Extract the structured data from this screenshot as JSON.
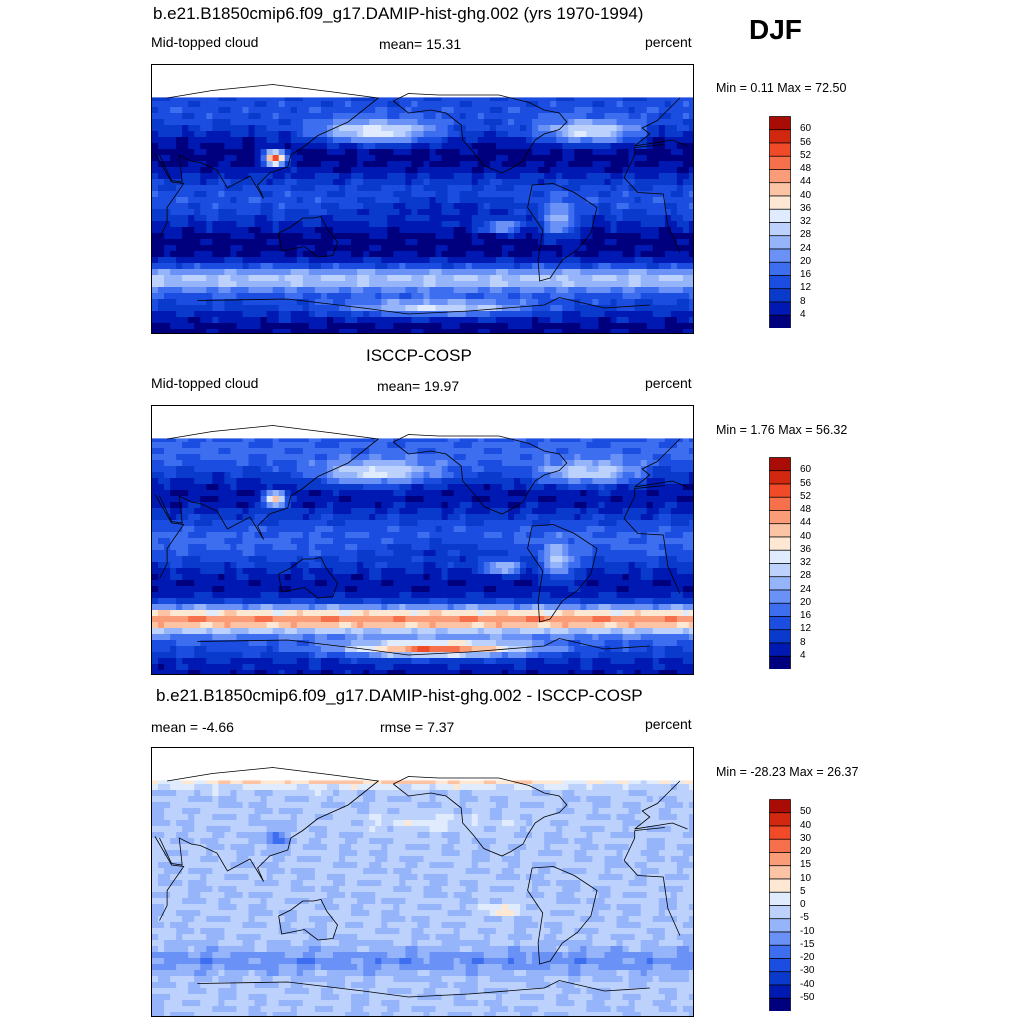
{
  "season": "DJF",
  "panels": [
    {
      "title": "b.e21.B1850cmip6.f09_g17.DAMIP-hist-ghg.002 (yrs 1970-1994)",
      "left_label": "Mid-topped cloud",
      "center_label": "mean=  15.31",
      "units": "percent",
      "minmax": "Min =   0.11 Max =  72.50",
      "scale": "abs",
      "climate": {
        "mean": 15.31,
        "min": 0.11,
        "max": 72.5,
        "southern_ocean_band": 28,
        "storm_track": 40,
        "hotspot": 64
      }
    },
    {
      "title": "ISCCP-COSP",
      "left_label": "Mid-topped cloud",
      "center_label": "mean=  19.97",
      "units": "percent",
      "minmax": "Min =   1.76 Max =  56.32",
      "scale": "abs",
      "climate": {
        "mean": 19.97,
        "min": 1.76,
        "max": 56.32,
        "southern_ocean_band": 44,
        "storm_track": 36,
        "hotspot": 50
      }
    },
    {
      "title": "b.e21.B1850cmip6.f09_g17.DAMIP-hist-ghg.002 - ISCCP-COSP",
      "left_label": "mean =  -4.66",
      "center_label": "rmse =   7.37",
      "units": "percent",
      "minmax": "Min = -28.23 Max =  26.37",
      "scale": "diff",
      "climate": {
        "mean": -4.66,
        "rmse": 7.37,
        "min": -28.23,
        "max": 26.37
      }
    }
  ],
  "chart_data": [
    {
      "type": "heatmap",
      "title": "b.e21.B1850cmip6.f09_g17.DAMIP-hist-ghg.002 (yrs 1970-1994)",
      "variable": "Mid-topped cloud",
      "units": "percent",
      "mean": 15.31,
      "min": 0.11,
      "max": 72.5,
      "colorbar_levels": [
        4,
        8,
        12,
        16,
        20,
        24,
        28,
        32,
        36,
        40,
        44,
        48,
        52,
        56,
        60
      ]
    },
    {
      "type": "heatmap",
      "title": "ISCCP-COSP",
      "variable": "Mid-topped cloud",
      "units": "percent",
      "mean": 19.97,
      "min": 1.76,
      "max": 56.32,
      "colorbar_levels": [
        4,
        8,
        12,
        16,
        20,
        24,
        28,
        32,
        36,
        40,
        44,
        48,
        52,
        56,
        60
      ]
    },
    {
      "type": "heatmap",
      "title": "b.e21.B1850cmip6.f09_g17.DAMIP-hist-ghg.002 - ISCCP-COSP",
      "units": "percent",
      "mean": -4.66,
      "rmse": 7.37,
      "min": -28.23,
      "max": 26.37,
      "colorbar_levels": [
        -50,
        -40,
        -30,
        -20,
        -15,
        -10,
        -5,
        0,
        5,
        10,
        15,
        20,
        30,
        40,
        50
      ]
    }
  ],
  "colors": {
    "abs_palette": [
      "#00007f",
      "#0019b2",
      "#0a3acc",
      "#1a4de0",
      "#3e6ef0",
      "#6a92f6",
      "#95b4fa",
      "#bcd2fc",
      "#e0ecfd",
      "#fde8d4",
      "#fcc4a4",
      "#fb9c78",
      "#f7704c",
      "#f14a28",
      "#d22810",
      "#a80c04",
      "#800000"
    ],
    "diff_palette": [
      "#00007f",
      "#0019b2",
      "#0a3acc",
      "#1a4de0",
      "#3e6ef0",
      "#6a92f6",
      "#95b4fa",
      "#bcd2fc",
      "#e0ecfd",
      "#fde8d4",
      "#fcc4a4",
      "#fb9c78",
      "#f7704c",
      "#f14a28",
      "#d22810",
      "#a80c04",
      "#800000"
    ]
  }
}
